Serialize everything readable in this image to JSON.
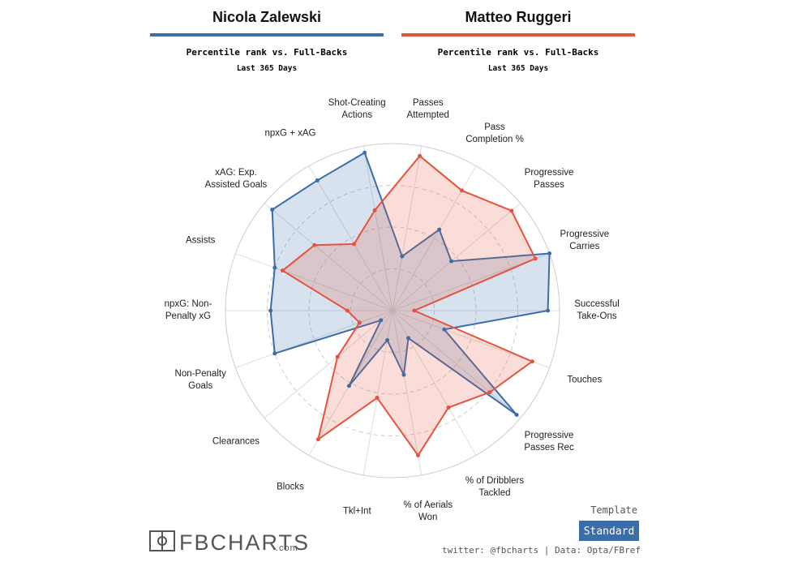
{
  "header": {
    "players": [
      {
        "name": "Nicola Zalewski",
        "subtitle": "Percentile rank vs. Full-Backs",
        "period": "Last 365 Days"
      },
      {
        "name": "Matteo Ruggeri",
        "subtitle": "Percentile rank vs. Full-Backs",
        "period": "Last 365 Days"
      }
    ]
  },
  "footer": {
    "logo": "FBCHARTS",
    "logo_suffix": ".com",
    "template_label": "Template",
    "template": "Standard",
    "credits": "twitter: @fbcharts | Data: Opta/FBref"
  },
  "chart_data": {
    "type": "radar",
    "categories": [
      "Passes\nAttempted",
      "Pass\nCompletion %",
      "Progressive\nPasses",
      "Progressive\nCarries",
      "Successful\nTake-Ons",
      "Touches",
      "Progressive\nPasses Rec",
      "% of Dribblers\nTackled",
      "% of Aerials\nWon",
      "Tkl+Int",
      "Blocks",
      "Clearances",
      "Non-Penalty\nGoals",
      "npxG: Non-\nPenalty xG",
      "Assists",
      "xAG: Exp.\nAssisted Goals",
      "npxG + xAG",
      "Shot-Creating\nActions"
    ],
    "rlim": [
      0,
      100
    ],
    "rticks": [
      25,
      50,
      75,
      100
    ],
    "series": [
      {
        "name": "Nicola Zalewski",
        "color": "#3b6ea8",
        "values": [
          33,
          56,
          46,
          100,
          93,
          33,
          97,
          19,
          39,
          18,
          52,
          9,
          75,
          73,
          75,
          94,
          90,
          96
        ]
      },
      {
        "name": "Matteo Ruggeri",
        "color": "#e5533d",
        "values": [
          94,
          83,
          93,
          91,
          13,
          89,
          76,
          67,
          88,
          53,
          89,
          43,
          21,
          27,
          70,
          61,
          46,
          61
        ]
      }
    ]
  }
}
